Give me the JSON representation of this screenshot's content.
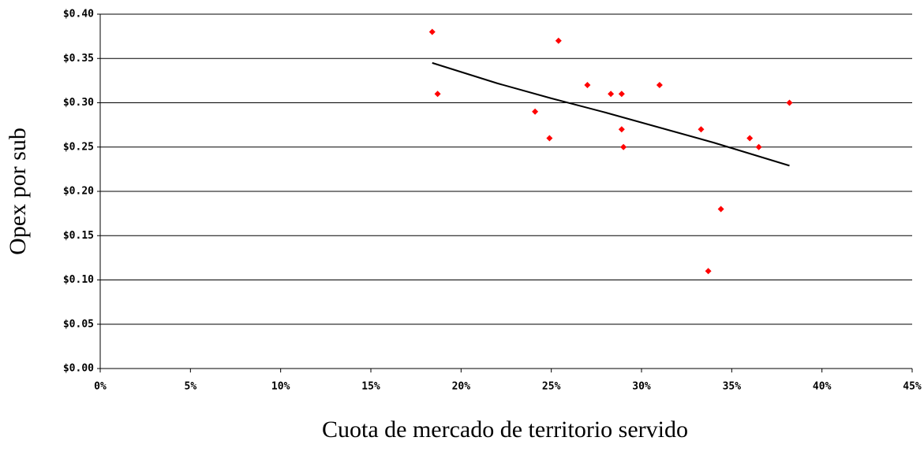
{
  "chart_data": {
    "type": "scatter",
    "x_label": "Cuota de mercado de territorio servido",
    "y_label": "Opex por sub",
    "series": [
      {
        "color": "#ff0000",
        "x": [
          18.4,
          18.7,
          25.4,
          24.1,
          24.9,
          27.0,
          28.3,
          28.9,
          28.9,
          29.0,
          31.0,
          33.3,
          34.4,
          33.7,
          36.0,
          36.5,
          38.2
        ],
        "values": [
          0.38,
          0.31,
          0.37,
          0.29,
          0.26,
          0.32,
          0.31,
          0.31,
          0.27,
          0.25,
          0.32,
          0.27,
          0.18,
          0.11,
          0.26,
          0.25,
          0.3
        ]
      }
    ],
    "trendline": {
      "color": "#000000",
      "x": [
        18.4,
        22,
        25,
        28,
        31,
        34,
        38.2
      ],
      "values": [
        0.345,
        0.322,
        0.305,
        0.289,
        0.272,
        0.255,
        0.229
      ]
    },
    "xlim": [
      0,
      45
    ],
    "xticks": [
      {
        "value": 0,
        "label": "0%"
      },
      {
        "value": 5,
        "label": "5%"
      },
      {
        "value": 10,
        "label": "10%"
      },
      {
        "value": 15,
        "label": "15%"
      },
      {
        "value": 20,
        "label": "20%"
      },
      {
        "value": 25,
        "label": "25%"
      },
      {
        "value": 30,
        "label": "30%"
      },
      {
        "value": 35,
        "label": "35%"
      },
      {
        "value": 40,
        "label": "40%"
      },
      {
        "value": 45,
        "label": "45%"
      }
    ],
    "ylim": [
      0,
      0.4
    ],
    "yticks": [
      {
        "value": 0,
        "label": "$0.00"
      },
      {
        "value": 0.05,
        "label": "$0.05"
      },
      {
        "value": 0.1,
        "label": "$0.10"
      },
      {
        "value": 0.15,
        "label": "$0.15"
      },
      {
        "value": 0.2,
        "label": "$0.20"
      },
      {
        "value": 0.25,
        "label": "$0.25"
      },
      {
        "value": 0.3,
        "label": "$0.30"
      },
      {
        "value": 0.35,
        "label": "$0.35"
      },
      {
        "value": 0.4,
        "label": "$0.40"
      }
    ],
    "grid": true
  }
}
